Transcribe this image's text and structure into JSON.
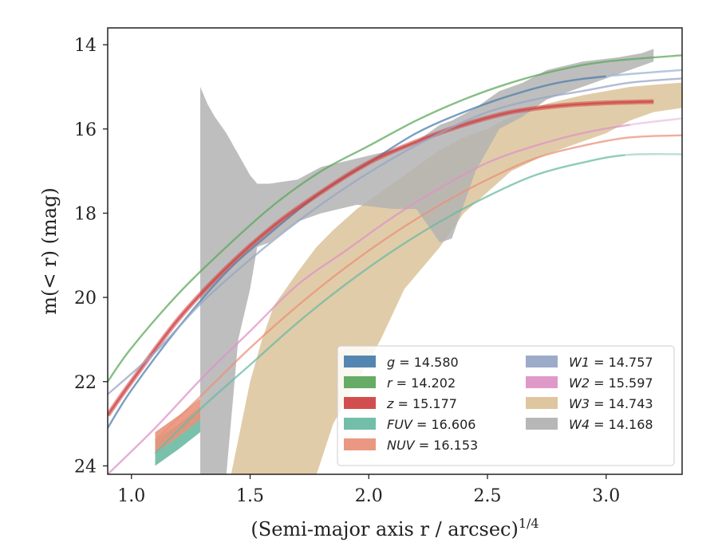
{
  "chart_data": {
    "type": "area",
    "xlabel": "(Semi-major axis r / arcsec)",
    "xlabel_sup": "1/4",
    "ylabel": "m(< r) (mag)",
    "xlim": [
      0.9,
      3.32
    ],
    "ylim": [
      24.2,
      13.6
    ],
    "y_inverted": true,
    "grid": false,
    "legend_position": "lower-right",
    "xticks": [
      1.0,
      1.5,
      2.0,
      2.5,
      3.0
    ],
    "xtick_labels": [
      "1.0",
      "1.5",
      "2.0",
      "2.5",
      "3.0"
    ],
    "yticks": [
      14,
      16,
      18,
      20,
      22,
      24
    ],
    "ytick_labels": [
      "14",
      "16",
      "18",
      "20",
      "22",
      "24"
    ],
    "series": [
      {
        "name": "g = 14.580",
        "label_var": "g",
        "label_val": "= 14.580",
        "color": "#4c7fae",
        "line": [
          [
            0.9,
            23.1
          ],
          [
            1.0,
            22.2
          ],
          [
            1.2,
            20.7
          ],
          [
            1.4,
            19.4
          ],
          [
            1.6,
            18.4
          ],
          [
            1.8,
            17.5
          ],
          [
            2.0,
            16.8
          ],
          [
            2.2,
            16.1
          ],
          [
            2.4,
            15.6
          ],
          [
            2.6,
            15.2
          ],
          [
            2.8,
            14.9
          ],
          [
            3.0,
            14.75
          ],
          [
            3.32,
            14.6
          ]
        ],
        "faded_from_x": 3.0
      },
      {
        "name": "r = 14.202",
        "label_var": "r",
        "label_val": "= 14.202",
        "color": "#5ea85e",
        "line": [
          [
            0.9,
            22.0
          ],
          [
            1.0,
            21.2
          ],
          [
            1.2,
            19.9
          ],
          [
            1.4,
            18.8
          ],
          [
            1.6,
            17.8
          ],
          [
            1.8,
            17.0
          ],
          [
            2.0,
            16.4
          ],
          [
            2.2,
            15.8
          ],
          [
            2.4,
            15.3
          ],
          [
            2.6,
            14.9
          ],
          [
            2.8,
            14.6
          ],
          [
            3.0,
            14.4
          ],
          [
            3.32,
            14.25
          ]
        ]
      },
      {
        "name": "z = 15.177",
        "label_var": "z",
        "label_val": "= 15.177",
        "color": "#d04444",
        "line": [
          [
            0.9,
            22.8
          ],
          [
            1.0,
            22.0
          ],
          [
            1.2,
            20.5
          ],
          [
            1.4,
            19.3
          ],
          [
            1.6,
            18.3
          ],
          [
            1.8,
            17.5
          ],
          [
            2.0,
            16.8
          ],
          [
            2.2,
            16.3
          ],
          [
            2.4,
            15.9
          ],
          [
            2.6,
            15.6
          ],
          [
            2.8,
            15.45
          ],
          [
            3.0,
            15.38
          ],
          [
            3.2,
            15.35
          ]
        ],
        "band_width": 0.25
      },
      {
        "name": "FUV = 16.606",
        "label_var": "FUV",
        "label_val": "= 16.606",
        "color": "#6bbaa3",
        "line": [
          [
            1.1,
            23.7
          ],
          [
            1.3,
            22.6
          ],
          [
            1.5,
            21.6
          ],
          [
            1.7,
            20.6
          ],
          [
            1.9,
            19.7
          ],
          [
            2.1,
            18.9
          ],
          [
            2.3,
            18.2
          ],
          [
            2.5,
            17.6
          ],
          [
            2.7,
            17.1
          ],
          [
            2.9,
            16.8
          ],
          [
            3.08,
            16.62
          ],
          [
            3.32,
            16.6
          ]
        ],
        "band": [
          [
            1.1,
            23.4,
            24.0
          ],
          [
            1.2,
            23.0,
            23.6
          ],
          [
            1.29,
            22.6,
            23.2
          ]
        ],
        "faded_from_x": 3.08
      },
      {
        "name": "NUV = 16.153",
        "label_var": "NUV",
        "label_val": "= 16.153",
        "color": "#e9927a",
        "line": [
          [
            1.1,
            23.4
          ],
          [
            1.3,
            22.3
          ],
          [
            1.5,
            21.2
          ],
          [
            1.7,
            20.2
          ],
          [
            1.9,
            19.3
          ],
          [
            2.1,
            18.5
          ],
          [
            2.3,
            17.8
          ],
          [
            2.5,
            17.2
          ],
          [
            2.7,
            16.7
          ],
          [
            2.9,
            16.4
          ],
          [
            3.1,
            16.2
          ],
          [
            3.32,
            16.15
          ]
        ],
        "band": [
          [
            1.1,
            23.2,
            23.7
          ],
          [
            1.2,
            22.8,
            23.3
          ],
          [
            1.29,
            22.4,
            22.9
          ]
        ],
        "faded_from_x": 3.25
      },
      {
        "name": "W1 = 14.757",
        "label_var": "W1",
        "label_val": "= 14.757",
        "color": "#97a6c4",
        "line": [
          [
            0.9,
            22.3
          ],
          [
            1.1,
            21.3
          ],
          [
            1.3,
            20.1
          ],
          [
            1.5,
            19.1
          ],
          [
            1.7,
            18.2
          ],
          [
            1.9,
            17.4
          ],
          [
            2.1,
            16.7
          ],
          [
            2.3,
            16.1
          ],
          [
            2.5,
            15.6
          ],
          [
            2.7,
            15.3
          ],
          [
            2.9,
            15.1
          ],
          [
            3.1,
            14.9
          ],
          [
            3.32,
            14.8
          ]
        ]
      },
      {
        "name": "W2 = 15.597",
        "label_var": "W2",
        "label_val": "= 15.597",
        "color": "#dd94c6",
        "line": [
          [
            0.9,
            24.2
          ],
          [
            1.1,
            23.1
          ],
          [
            1.3,
            21.9
          ],
          [
            1.5,
            20.8
          ],
          [
            1.7,
            19.7
          ],
          [
            1.9,
            18.9
          ],
          [
            2.1,
            18.1
          ],
          [
            2.3,
            17.4
          ],
          [
            2.5,
            16.8
          ],
          [
            2.7,
            16.4
          ],
          [
            2.9,
            16.1
          ],
          [
            3.1,
            15.9
          ],
          [
            3.32,
            15.75
          ]
        ],
        "faded_from_x": 3.0
      },
      {
        "name": "W3 = 14.743",
        "label_var": "W3",
        "label_val": "= 14.743",
        "color": "#dcc39a",
        "band": [
          [
            1.42,
            24.2,
            24.2
          ],
          [
            1.5,
            22.0,
            24.2
          ],
          [
            1.55,
            21.0,
            24.2
          ],
          [
            1.6,
            20.2,
            24.2
          ],
          [
            1.7,
            19.4,
            24.2
          ],
          [
            1.78,
            18.8,
            24.2
          ],
          [
            1.85,
            18.4,
            23.0
          ],
          [
            1.95,
            17.9,
            22.0
          ],
          [
            2.05,
            17.5,
            21.0
          ],
          [
            2.15,
            17.1,
            19.8
          ],
          [
            2.3,
            16.5,
            18.8
          ],
          [
            2.4,
            16.2,
            18.0
          ],
          [
            2.5,
            16.0,
            17.5
          ],
          [
            2.6,
            15.7,
            17.0
          ],
          [
            2.75,
            15.4,
            16.6
          ],
          [
            2.9,
            15.2,
            16.3
          ],
          [
            3.0,
            15.1,
            16.1
          ],
          [
            3.1,
            15.0,
            15.8
          ],
          [
            3.2,
            14.95,
            15.6
          ],
          [
            3.32,
            14.9,
            15.5
          ]
        ]
      },
      {
        "name": "W4 = 14.168",
        "label_var": "W4",
        "label_val": "= 14.168",
        "color": "#b3b3b3",
        "band": [
          [
            1.29,
            15.0,
            24.2
          ],
          [
            1.32,
            15.4,
            24.2
          ],
          [
            1.35,
            15.7,
            24.2
          ],
          [
            1.4,
            16.1,
            24.2
          ],
          [
            1.45,
            16.6,
            21.0
          ],
          [
            1.5,
            17.1,
            19.8
          ],
          [
            1.53,
            17.3,
            18.8
          ],
          [
            1.58,
            17.3,
            18.7
          ],
          [
            1.7,
            17.2,
            18.2
          ],
          [
            1.8,
            16.9,
            18.0
          ],
          [
            1.95,
            16.7,
            17.8
          ],
          [
            2.1,
            16.5,
            17.9
          ],
          [
            2.2,
            16.3,
            17.9
          ],
          [
            2.3,
            15.9,
            18.7
          ],
          [
            2.35,
            15.8,
            18.6
          ],
          [
            2.45,
            15.5,
            17.0
          ],
          [
            2.55,
            15.1,
            16.0
          ],
          [
            2.65,
            14.9,
            15.7
          ],
          [
            2.75,
            14.6,
            15.3
          ],
          [
            2.9,
            14.4,
            15.0
          ],
          [
            3.05,
            14.3,
            14.7
          ],
          [
            3.15,
            14.2,
            14.5
          ],
          [
            3.2,
            14.1,
            14.4
          ]
        ]
      }
    ]
  }
}
